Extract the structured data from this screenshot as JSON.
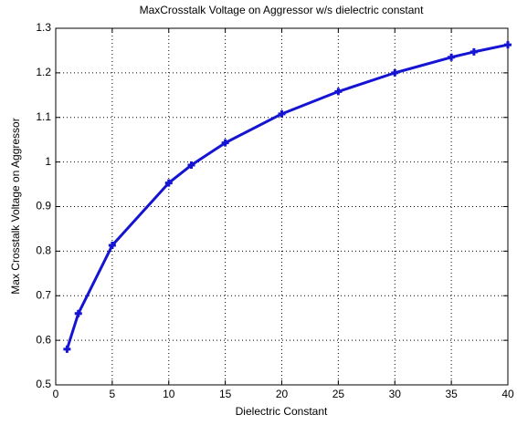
{
  "chart_data": {
    "type": "line",
    "title": "MaxCrosstalk Voltage on Aggressor w/s dielectric constant",
    "x_label": "Dielectric Constant",
    "y_label": "Max Crosstalk Voltage on Aggressor",
    "x": [
      1,
      2,
      5,
      10,
      12,
      15,
      20,
      25,
      30,
      35,
      37,
      40
    ],
    "series": [
      {
        "name": "Max Crosstalk Voltage",
        "color": "#1414d2",
        "values": [
          0.58,
          0.66,
          0.813,
          0.953,
          0.993,
          1.043,
          1.108,
          1.158,
          1.2,
          1.235,
          1.247,
          1.263
        ]
      }
    ],
    "xlim": [
      0,
      40
    ],
    "xticks": [
      0,
      5,
      10,
      15,
      20,
      25,
      30,
      35,
      40
    ],
    "ylim": [
      0.5,
      1.3
    ],
    "yticks": [
      0.5,
      0.6,
      0.7,
      0.8,
      0.9,
      1,
      1.1,
      1.2,
      1.3
    ],
    "grid": true,
    "marker": "plus"
  }
}
